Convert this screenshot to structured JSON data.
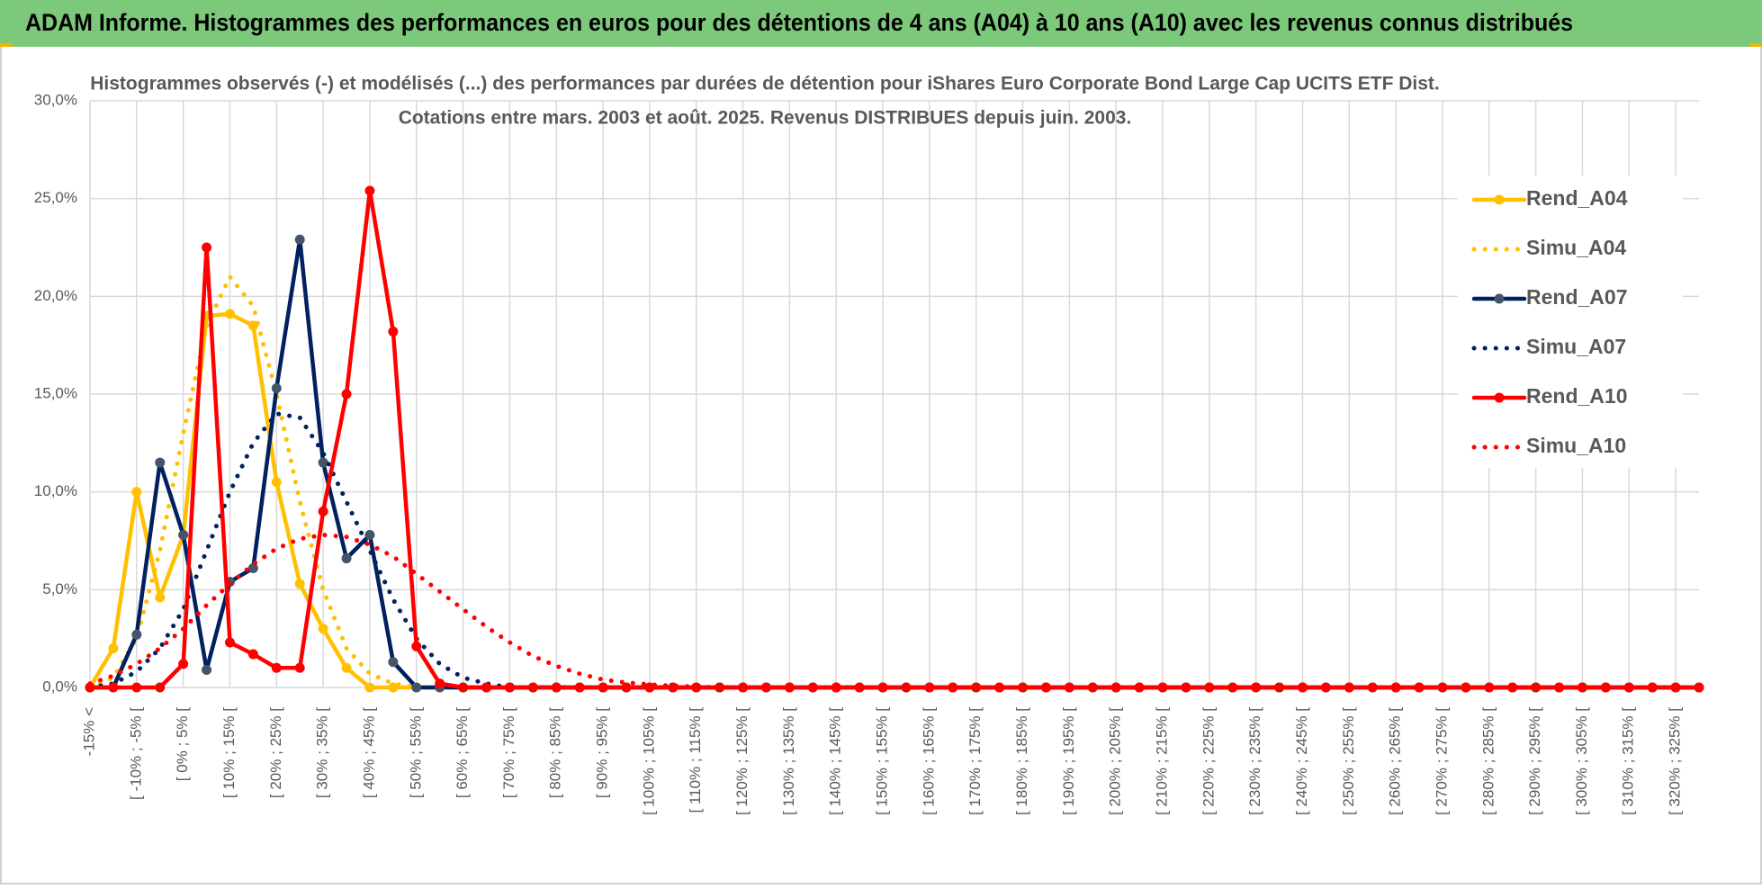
{
  "header": {
    "title": "ADAM Informe. Histogrammes des performances en euros pour des détentions de 4 ans (A04) à 10 ans (A10) avec les revenus connus distribués"
  },
  "chart_data": {
    "type": "line",
    "title": [
      "Histogrammes observés (-) et modélisés (...) des performances par durées de détention pour iShares Euro Corporate Bond Large Cap UCITS ETF Dist.",
      "Cotations entre mars. 2003 et août. 2025. Revenus DISTRIBUES depuis juin. 2003."
    ],
    "categories": [
      "-15% <",
      null,
      "[ -10% ; -5% [",
      null,
      "[ 0% ; 5% [",
      null,
      "[ 10% ; 15% [",
      null,
      "[ 20% ; 25% [",
      null,
      "[ 30% ; 35% [",
      null,
      "[ 40% ; 45% [",
      null,
      "[ 50% ; 55% [",
      null,
      "[ 60% ; 65% [",
      null,
      "[ 70% ; 75% [",
      null,
      "[ 80% ; 85% [",
      null,
      "[ 90% ; 95% [",
      null,
      "[ 100% ; 105% [",
      null,
      "[ 110% ; 115% [",
      null,
      "[ 120% ; 125% [",
      null,
      "[ 130% ; 135% [",
      null,
      "[ 140% ; 145% [",
      null,
      "[ 150% ; 155% [",
      null,
      "[ 160% ; 165% [",
      null,
      "[ 170% ; 175% [",
      null,
      "[ 180% ; 185% [",
      null,
      "[ 190% ; 195% [",
      null,
      "[ 200% ; 205% [",
      null,
      "[ 210% ; 215% [",
      null,
      "[ 220% ; 225% [",
      null,
      "[ 230% ; 235% [",
      null,
      "[ 240% ; 245% [",
      null,
      "[ 250% ; 255% [",
      null,
      "[ 260% ; 265% [",
      null,
      "[ 270% ; 275% [",
      null,
      "[ 280% ; 285% [",
      null,
      "[ 290% ; 295% [",
      null,
      "[ 300% ; 305% [",
      null,
      "[ 310% ; 315% [",
      null,
      "[ 320% ; 325% [",
      null
    ],
    "series": [
      {
        "name": "Rend_A04",
        "color": "#ffc000",
        "style": "solid",
        "markers": true,
        "values": [
          0,
          2.0,
          10.0,
          4.6,
          7.8,
          19.0,
          19.1,
          18.5,
          10.5,
          5.3,
          3.0,
          1.0,
          0,
          0,
          0,
          0,
          0,
          0,
          0,
          0,
          0,
          0,
          0,
          0,
          0,
          0,
          0,
          0,
          0,
          0,
          0,
          0,
          0,
          0,
          0,
          0,
          0,
          0,
          0,
          0,
          0,
          0,
          0,
          0,
          0,
          0,
          0,
          0,
          0,
          0,
          0,
          0,
          0,
          0,
          0,
          0,
          0,
          0,
          0,
          0,
          0,
          0,
          0,
          0,
          0,
          0,
          0,
          0,
          0,
          0
        ]
      },
      {
        "name": "Simu_A04",
        "color": "#ffc000",
        "style": "dotted",
        "markers": false,
        "values": [
          0,
          0.5,
          2.5,
          7,
          13,
          18.5,
          21,
          19.5,
          15,
          9.5,
          5,
          2,
          0.7,
          0.2,
          0,
          0,
          0,
          0,
          0,
          0,
          0,
          0,
          0,
          0,
          0,
          0,
          0,
          0,
          0,
          0,
          0,
          0,
          0,
          0,
          0,
          0,
          0,
          0,
          0,
          0,
          0,
          0,
          0,
          0,
          0,
          0,
          0,
          0,
          0,
          0,
          0,
          0,
          0,
          0,
          0,
          0,
          0,
          0,
          0,
          0,
          0,
          0,
          0,
          0,
          0,
          0,
          0,
          0,
          0,
          0
        ]
      },
      {
        "name": "Rend_A07",
        "color": "#002060",
        "marker_color": "#44546a",
        "style": "solid",
        "markers": true,
        "values": [
          0,
          0,
          2.7,
          11.5,
          7.8,
          0.9,
          5.4,
          6.1,
          15.3,
          22.9,
          11.5,
          6.6,
          7.8,
          1.3,
          0,
          0,
          0,
          0,
          0,
          0,
          0,
          0,
          0,
          0,
          0,
          0,
          0,
          0,
          0,
          0,
          0,
          0,
          0,
          0,
          0,
          0,
          0,
          0,
          0,
          0,
          0,
          0,
          0,
          0,
          0,
          0,
          0,
          0,
          0,
          0,
          0,
          0,
          0,
          0,
          0,
          0,
          0,
          0,
          0,
          0,
          0,
          0,
          0,
          0,
          0,
          0,
          0,
          0,
          0,
          0
        ]
      },
      {
        "name": "Simu_A07",
        "color": "#002060",
        "style": "dotted",
        "markers": false,
        "values": [
          0,
          0.2,
          0.8,
          2,
          4,
          7,
          10,
          12.5,
          14,
          13.8,
          12,
          9.5,
          7,
          4.5,
          2.5,
          1.2,
          0.5,
          0.2,
          0,
          0,
          0,
          0,
          0,
          0,
          0,
          0,
          0,
          0,
          0,
          0,
          0,
          0,
          0,
          0,
          0,
          0,
          0,
          0,
          0,
          0,
          0,
          0,
          0,
          0,
          0,
          0,
          0,
          0,
          0,
          0,
          0,
          0,
          0,
          0,
          0,
          0,
          0,
          0,
          0,
          0,
          0,
          0,
          0,
          0,
          0,
          0,
          0,
          0,
          0,
          0
        ]
      },
      {
        "name": "Rend_A10",
        "color": "#ff0000",
        "style": "solid",
        "markers": true,
        "values": [
          0,
          0,
          0,
          0,
          1.2,
          22.5,
          2.3,
          1.7,
          1.0,
          1.0,
          9.0,
          15.0,
          25.4,
          18.2,
          2.1,
          0.2,
          0,
          0,
          0,
          0,
          0,
          0,
          0,
          0,
          0,
          0,
          0,
          0,
          0,
          0,
          0,
          0,
          0,
          0,
          0,
          0,
          0,
          0,
          0,
          0,
          0,
          0,
          0,
          0,
          0,
          0,
          0,
          0,
          0,
          0,
          0,
          0,
          0,
          0,
          0,
          0,
          0,
          0,
          0,
          0,
          0,
          0,
          0,
          0,
          0,
          0,
          0,
          0,
          0,
          0
        ]
      },
      {
        "name": "Simu_A10",
        "color": "#ff0000",
        "style": "dotted",
        "markers": false,
        "values": [
          0.2,
          0.6,
          1.2,
          2,
          3,
          4.2,
          5.3,
          6.3,
          7.1,
          7.6,
          7.8,
          7.7,
          7.3,
          6.7,
          5.8,
          4.9,
          4,
          3.1,
          2.3,
          1.6,
          1.1,
          0.7,
          0.4,
          0.25,
          0.15,
          0.08,
          0.04,
          0,
          0,
          0,
          0,
          0,
          0,
          0,
          0,
          0,
          0,
          0,
          0,
          0,
          0,
          0,
          0,
          0,
          0,
          0,
          0,
          0,
          0,
          0,
          0,
          0,
          0,
          0,
          0,
          0,
          0,
          0,
          0,
          0,
          0,
          0,
          0,
          0,
          0,
          0,
          0,
          0,
          0,
          0
        ]
      }
    ],
    "ylim": [
      0,
      30
    ],
    "yticks": [
      {
        "value": 0,
        "label": "0,0%"
      },
      {
        "value": 5,
        "label": "5,0%"
      },
      {
        "value": 10,
        "label": "10,0%"
      },
      {
        "value": 15,
        "label": "15,0%"
      },
      {
        "value": 20,
        "label": "20,0%"
      },
      {
        "value": 25,
        "label": "25,0%"
      },
      {
        "value": 30,
        "label": "30,0%"
      }
    ],
    "grid": true,
    "legend": "right"
  }
}
